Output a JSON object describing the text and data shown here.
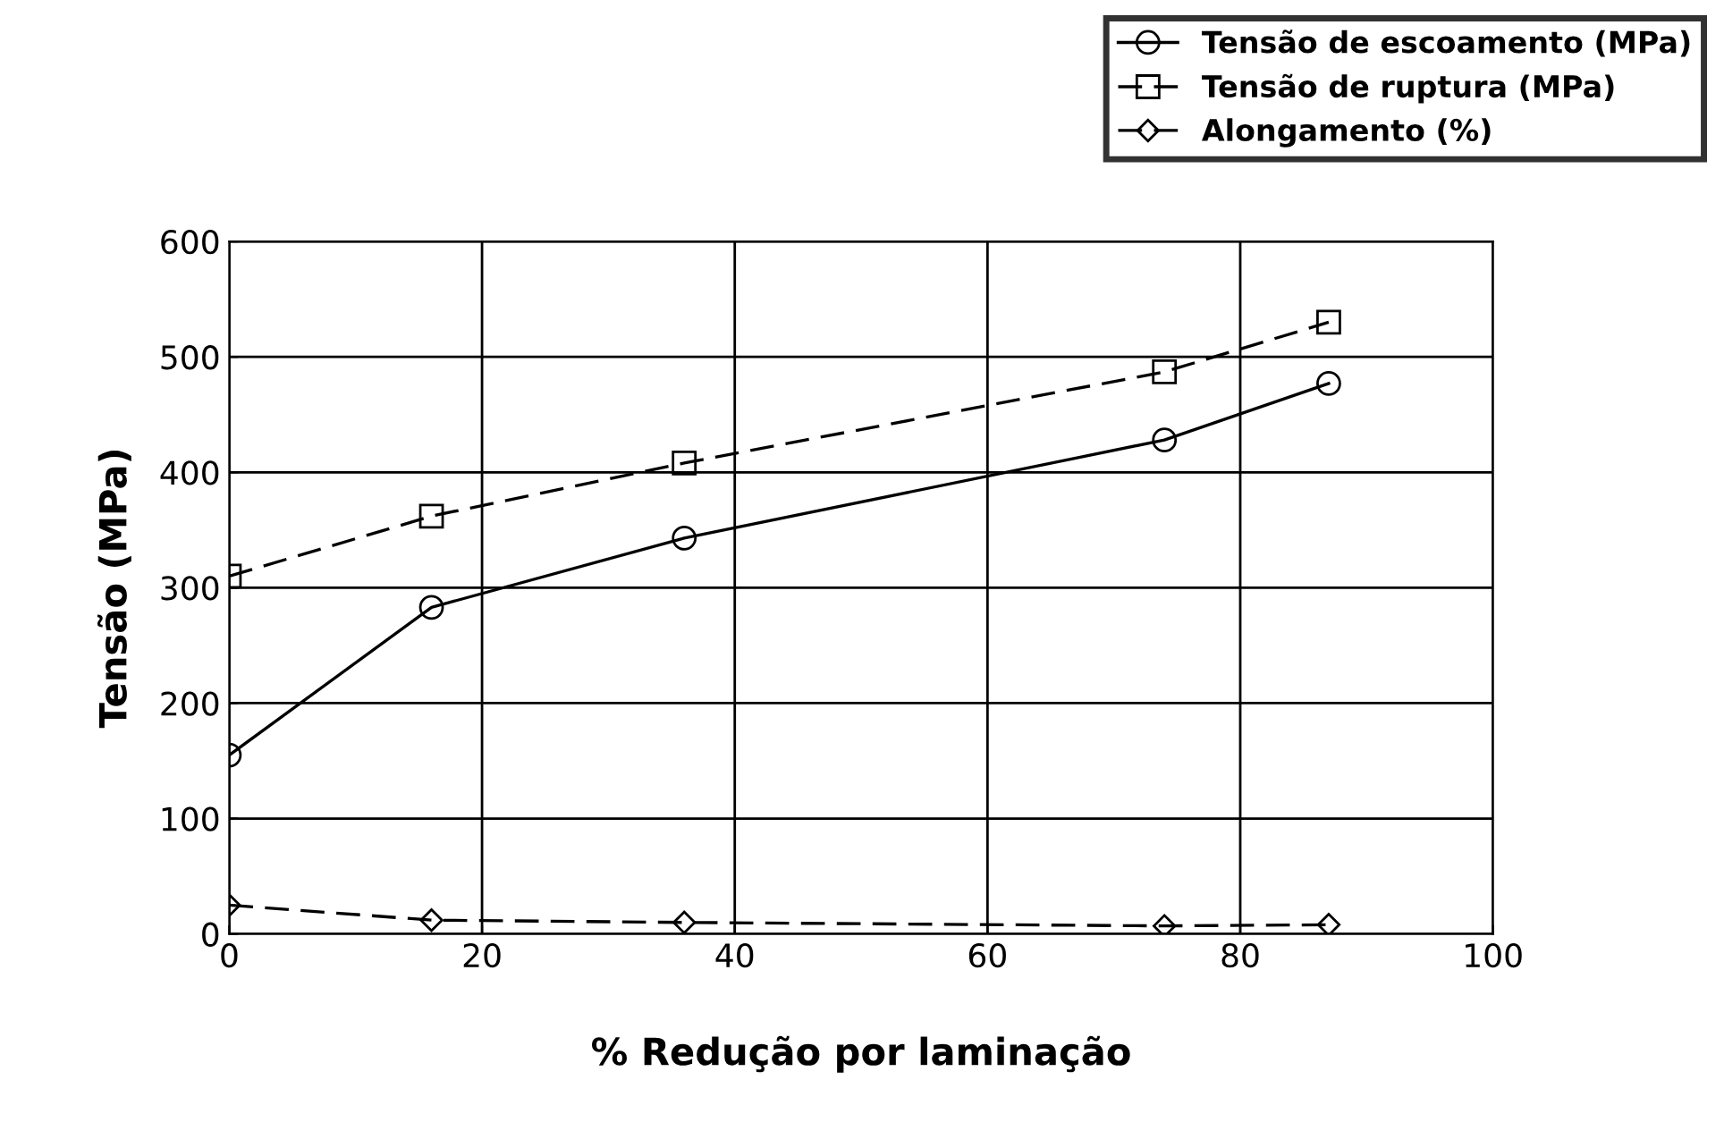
{
  "chart_data": {
    "type": "line",
    "xlabel": "% Redução por laminação",
    "ylabel": "Tensão (MPa)",
    "xlim": [
      0,
      100
    ],
    "xticks": [
      0,
      20,
      40,
      60,
      80,
      100
    ],
    "ylim": [
      0,
      600
    ],
    "yticks": [
      0,
      100,
      200,
      300,
      400,
      500,
      600
    ],
    "grid": true,
    "legend": "top right",
    "series": [
      {
        "name": "Tensão de escoamento (MPa)",
        "color": "#000000",
        "marker": "circle",
        "line_style": "solid",
        "x": [
          0,
          16,
          36,
          74,
          87
        ],
        "values": [
          155,
          283,
          343,
          428,
          477
        ]
      },
      {
        "name": "Tensão de ruptura (MPa)",
        "color": "#000000",
        "marker": "square",
        "line_style": "dashed",
        "x": [
          0,
          16,
          36,
          74,
          87
        ],
        "values": [
          310,
          362,
          408,
          487,
          530
        ]
      },
      {
        "name": "Alongamento (%)",
        "color": "#000000",
        "marker": "diamond",
        "line_style": "dashed",
        "x": [
          0,
          16,
          36,
          74,
          87
        ],
        "values": [
          25,
          12,
          10,
          7,
          8
        ]
      }
    ]
  }
}
